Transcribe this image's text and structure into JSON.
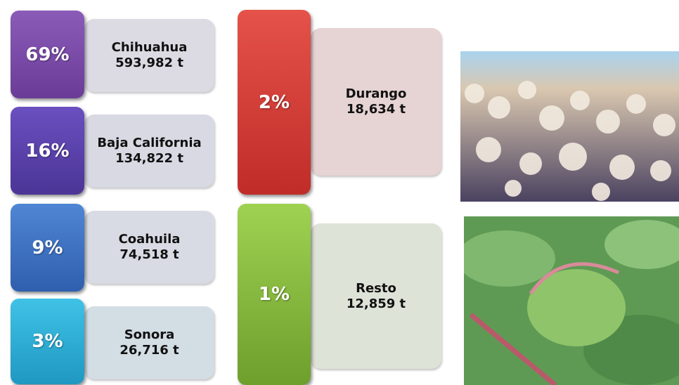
{
  "items": [
    {
      "percent": "69%",
      "name": "Chihuahua",
      "amount": "593,982 t"
    },
    {
      "percent": "16%",
      "name": "Baja California",
      "amount": "134,822 t"
    },
    {
      "percent": "9%",
      "name": "Coahuila",
      "amount": "74,518 t"
    },
    {
      "percent": "3%",
      "name": "Sonora",
      "amount": "26,716 t"
    },
    {
      "percent": "2%",
      "name": "Durango",
      "amount": "18,634 t"
    },
    {
      "percent": "1%",
      "name": "Resto",
      "amount": "12,859 t"
    }
  ]
}
